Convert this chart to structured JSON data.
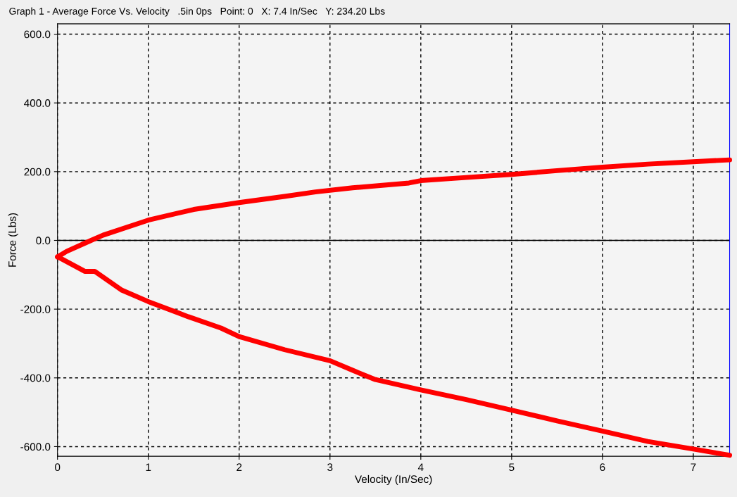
{
  "chart_data": {
    "type": "line",
    "title": "Graph 1 - Average Force Vs. Velocity   .5in 0ps   Point: 0   X: 7.4 In/Sec   Y: 234.20 Lbs",
    "xlabel": "Velocity (In/Sec)",
    "ylabel": "Force (Lbs)",
    "series": [
      {
        "color": "#ff0000",
        "x": [
          0,
          0.1,
          0.37,
          0.5,
          1,
          1.5,
          2,
          2.5,
          2.84,
          3.25,
          3.87,
          4,
          4.5,
          5,
          5.5,
          6,
          6.5,
          7,
          7.4
        ],
        "values": [
          -48,
          -32,
          0,
          15,
          59,
          90,
          110,
          128,
          141,
          153,
          167,
          174,
          183,
          192,
          203,
          213,
          222,
          229,
          234.2
        ]
      },
      {
        "color": "#ff0000",
        "x": [
          0,
          0.04,
          0.3,
          0.41,
          0.71,
          1,
          1.44,
          1.8,
          2,
          2.5,
          3,
          3.25,
          3.5,
          4,
          4.5,
          5,
          5.5,
          6,
          6.5,
          7,
          7.4
        ],
        "values": [
          -48,
          -53,
          -90,
          -90,
          -145,
          -178,
          -222,
          -255,
          -280,
          -318,
          -350,
          -378,
          -405,
          -435,
          -463,
          -494,
          -525,
          -555,
          -585,
          -607,
          -625
        ]
      }
    ],
    "xlim": [
      0,
      7.4
    ],
    "xticks": [
      0,
      1,
      2,
      3,
      4,
      5,
      6,
      7
    ],
    "ylim": [
      -628,
      630
    ],
    "yticks": [
      {
        "value": -600,
        "label": "-600.0"
      },
      {
        "value": -400,
        "label": "-400.0"
      },
      {
        "value": -200,
        "label": "-200.0"
      },
      {
        "value": 0,
        "label": "0.0"
      },
      {
        "value": 200,
        "label": "200.0"
      },
      {
        "value": 400,
        "label": "400.0"
      },
      {
        "value": 600,
        "label": "600.0"
      }
    ],
    "ref_lines": [
      {
        "axis": "y",
        "value": 0,
        "color": "#000000",
        "line_style": "solid"
      }
    ],
    "grid": true,
    "line_style": "solid",
    "marker": "none"
  }
}
